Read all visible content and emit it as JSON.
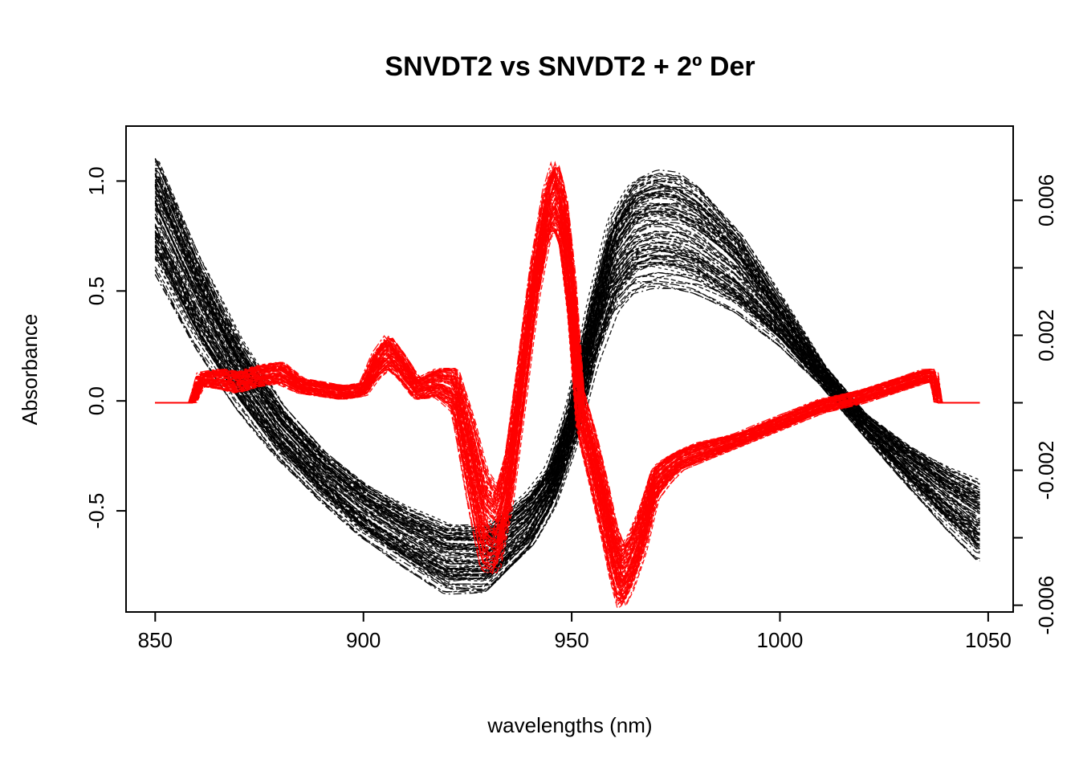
{
  "chart_data": {
    "type": "line",
    "title": "SNVDT2 vs SNVDT2 + 2º Der",
    "xlabel": "wavelengths (nm)",
    "ylabel": "Absorbance",
    "y2label": "",
    "xlim": [
      843,
      1056
    ],
    "ylim": [
      -0.96,
      1.25
    ],
    "y2lim": [
      -0.0062,
      0.0082
    ],
    "x_ticks": [
      850,
      900,
      950,
      1000,
      1050
    ],
    "y_ticks": [
      -0.5,
      0.0,
      0.5,
      1.0
    ],
    "y_tick_labels": [
      "-0.5",
      "0.0",
      "0.5",
      "1.0"
    ],
    "y2_ticks": [
      -0.006,
      -0.004,
      -0.002,
      0.0,
      0.002,
      0.004,
      0.006
    ],
    "y2_tick_labels": [
      "-0.006",
      "",
      "-0.002",
      "",
      "0.002",
      "",
      "0.006"
    ],
    "grid": false,
    "legend": "none",
    "series": [
      {
        "axis": "left",
        "color": "#000000",
        "style": "dashed",
        "spectra_count_estimate": 100,
        "x": [
          850,
          860,
          870,
          880,
          890,
          900,
          910,
          920,
          930,
          940,
          945,
          950,
          955,
          960,
          965,
          970,
          975,
          980,
          990,
          1000,
          1010,
          1020,
          1030,
          1040,
          1048
        ],
        "mean_values": [
          0.85,
          0.45,
          0.12,
          -0.14,
          -0.34,
          -0.5,
          -0.62,
          -0.72,
          -0.72,
          -0.55,
          -0.4,
          -0.12,
          0.3,
          0.62,
          0.75,
          0.78,
          0.77,
          0.73,
          0.58,
          0.36,
          0.12,
          -0.1,
          -0.28,
          -0.44,
          -0.55
        ],
        "spread": [
          0.25,
          0.2,
          0.15,
          0.12,
          0.11,
          0.12,
          0.13,
          0.15,
          0.15,
          0.13,
          0.1,
          0.1,
          0.15,
          0.22,
          0.25,
          0.26,
          0.26,
          0.24,
          0.18,
          0.1,
          0.04,
          0.04,
          0.08,
          0.13,
          0.17
        ]
      },
      {
        "axis": "right",
        "color": "#ff0000",
        "style": "dashed",
        "spectra_count_estimate": 100,
        "x": [
          850,
          859,
          861,
          866,
          870,
          875,
          880,
          885,
          890,
          895,
          900,
          903,
          906,
          909,
          913,
          918,
          922,
          926,
          929,
          932,
          935,
          938,
          941,
          944,
          946,
          948,
          950,
          952,
          955,
          958,
          960,
          962,
          964,
          967,
          970,
          973,
          976,
          980,
          990,
          1000,
          1010,
          1020,
          1025,
          1030,
          1035,
          1037,
          1038,
          1040,
          1048
        ],
        "mean_values": [
          0.0,
          0.0,
          0.0007,
          0.0007,
          0.0006,
          0.0008,
          0.0009,
          0.0005,
          0.0004,
          0.0003,
          0.0004,
          0.0011,
          0.0015,
          0.0011,
          0.0004,
          0.0006,
          0.0004,
          -0.0018,
          -0.0035,
          -0.0038,
          -0.0022,
          0.0006,
          0.0035,
          0.0056,
          0.0062,
          0.0054,
          0.0032,
          -0.0002,
          -0.0016,
          -0.0032,
          -0.0044,
          -0.0052,
          -0.0048,
          -0.0038,
          -0.0024,
          -0.002,
          -0.0017,
          -0.0015,
          -0.0011,
          -0.0006,
          -0.0001,
          0.0002,
          0.0004,
          0.0006,
          0.0008,
          0.0008,
          0.0,
          0.0,
          0.0
        ],
        "spread": [
          0.0,
          0.0,
          0.0002,
          0.0003,
          0.0003,
          0.0003,
          0.0003,
          0.0002,
          0.0002,
          0.0002,
          0.0002,
          0.0004,
          0.0005,
          0.0004,
          0.0003,
          0.0004,
          0.0006,
          0.0012,
          0.0014,
          0.0012,
          0.0009,
          0.0008,
          0.0007,
          0.0008,
          0.001,
          0.0009,
          0.0008,
          0.0007,
          0.0008,
          0.0008,
          0.0008,
          0.0009,
          0.0008,
          0.0007,
          0.0005,
          0.0004,
          0.0003,
          0.0003,
          0.0002,
          0.0002,
          0.0002,
          0.0002,
          0.0002,
          0.0002,
          0.0002,
          0.0002,
          0.0,
          0.0,
          0.0
        ]
      }
    ]
  }
}
